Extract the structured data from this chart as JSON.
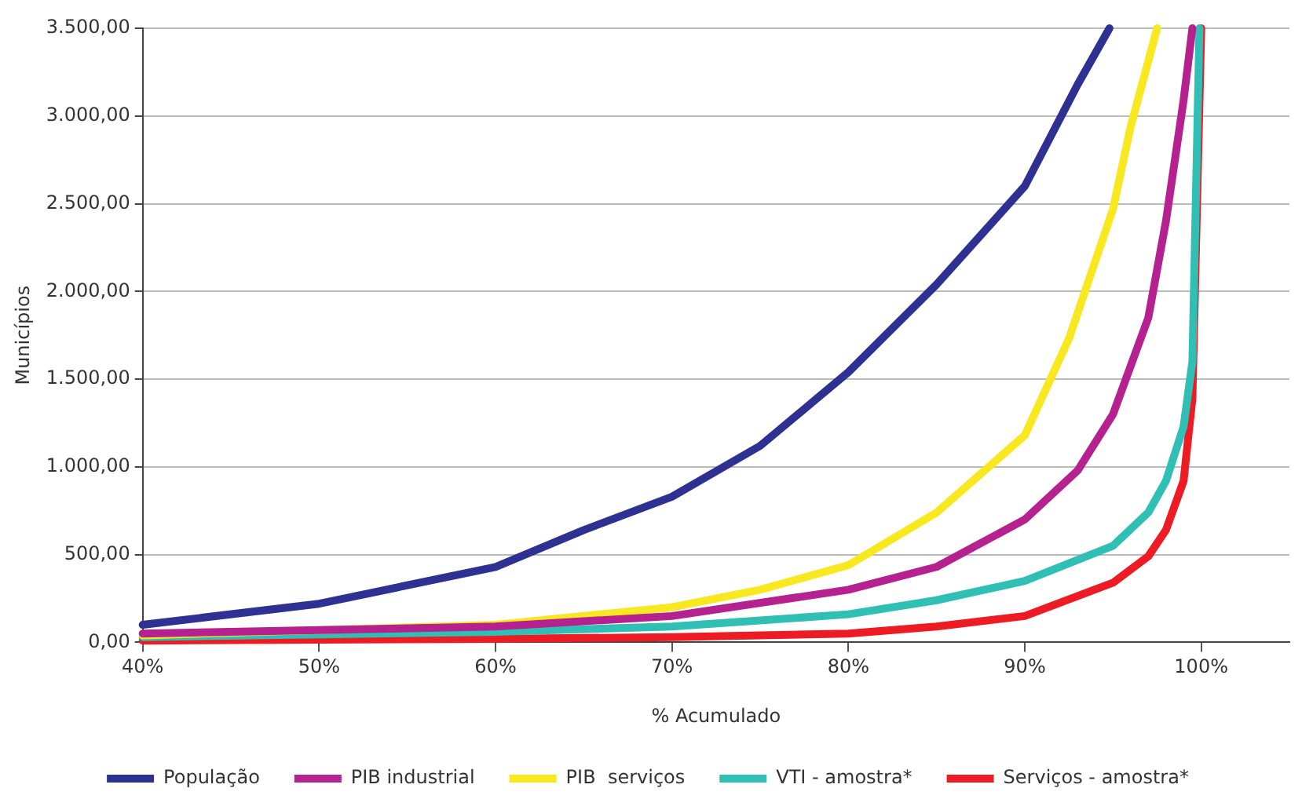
{
  "chart_data": {
    "type": "line",
    "xlabel": "% Acumulado",
    "ylabel": "Municípios",
    "xlim": [
      40,
      105
    ],
    "ylim": [
      0,
      3500
    ],
    "xticks": [
      {
        "value": 40,
        "label": "40%"
      },
      {
        "value": 50,
        "label": "50%"
      },
      {
        "value": 60,
        "label": "60%"
      },
      {
        "value": 70,
        "label": "70%"
      },
      {
        "value": 80,
        "label": "80%"
      },
      {
        "value": 90,
        "label": "90%"
      },
      {
        "value": 100,
        "label": "100%"
      }
    ],
    "yticks": [
      {
        "value": 0,
        "label": "0,00"
      },
      {
        "value": 500,
        "label": "500,00"
      },
      {
        "value": 1000,
        "label": "1.000,00"
      },
      {
        "value": 1500,
        "label": "1.500,00"
      },
      {
        "value": 2000,
        "label": "2.000,00"
      },
      {
        "value": 2500,
        "label": "2.500,00"
      },
      {
        "value": 3000,
        "label": "3.000,00"
      },
      {
        "value": 3500,
        "label": "3.500,00"
      }
    ],
    "grid": "y",
    "legend": "bottom",
    "marker": "none",
    "line_style": "solid",
    "series": [
      {
        "name": "População",
        "color": "#2e3192",
        "x": [
          40,
          50,
          60,
          65,
          70,
          75,
          80,
          85,
          90,
          93,
          94.8
        ],
        "values": [
          100,
          220,
          430,
          640,
          830,
          1120,
          1540,
          2040,
          2600,
          3180,
          3500
        ]
      },
      {
        "name": "PIB industrial",
        "color": "#b5218f",
        "x": [
          40,
          60,
          70,
          80,
          85,
          90,
          93,
          95,
          97,
          98,
          99,
          99.5
        ],
        "values": [
          50,
          90,
          150,
          300,
          430,
          700,
          980,
          1300,
          1850,
          2400,
          3090,
          3500
        ]
      },
      {
        "name": "PIB  serviços",
        "color": "#f7e81f",
        "x": [
          40,
          60,
          70,
          75,
          80,
          85,
          90,
          92.5,
          95,
          96,
          97.5
        ],
        "values": [
          40,
          100,
          200,
          300,
          440,
          740,
          1180,
          1730,
          2470,
          2940,
          3500
        ]
      },
      {
        "name": "VTI - amostra*",
        "color": "#2fbfb5",
        "x": [
          40,
          60,
          70,
          80,
          85,
          90,
          95,
          97,
          98,
          99,
          99.5,
          99.9
        ],
        "values": [
          30,
          60,
          90,
          160,
          240,
          350,
          550,
          740,
          920,
          1230,
          1600,
          3500
        ]
      },
      {
        "name": "Serviços - amostra*",
        "color": "#ed1c24",
        "x": [
          40,
          60,
          70,
          80,
          85,
          90,
          95,
          97,
          98,
          99,
          99.5,
          100
        ],
        "values": [
          10,
          20,
          30,
          50,
          90,
          150,
          340,
          490,
          640,
          920,
          1390,
          3500
        ]
      }
    ]
  }
}
